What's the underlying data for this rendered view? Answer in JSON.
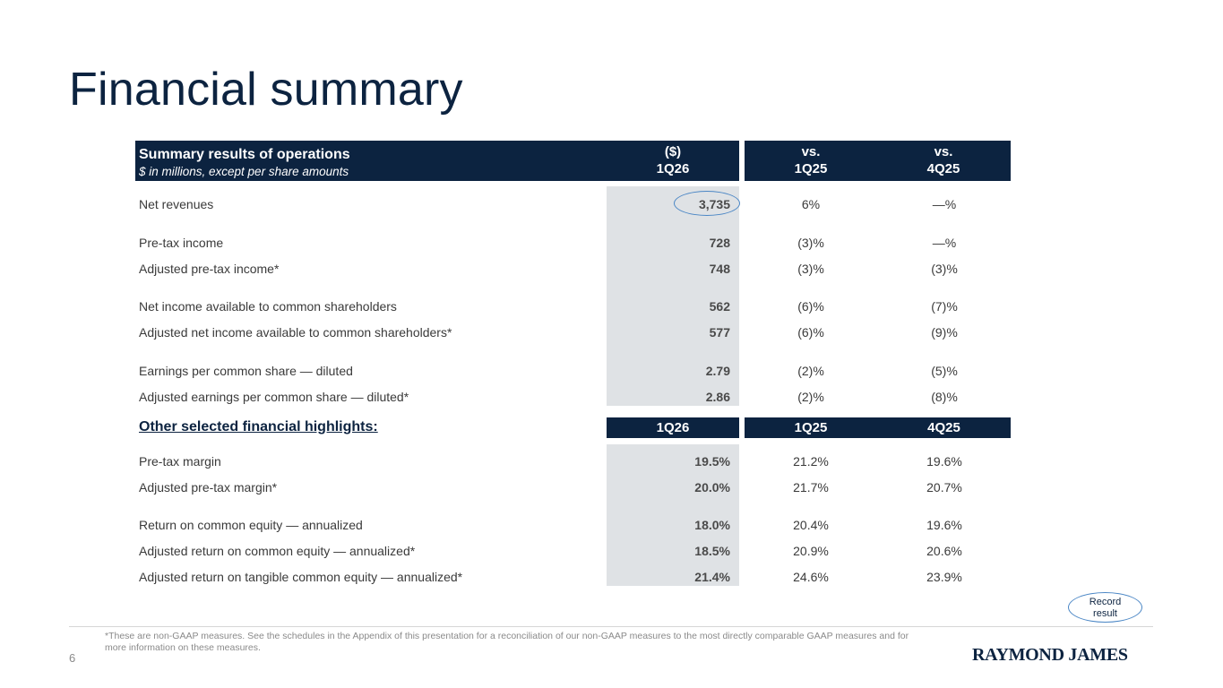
{
  "title": "Financial summary",
  "header": {
    "title": "Summary results of operations",
    "subtitle": "$ in millions, except per share amounts",
    "col1_line1": "($)",
    "col1_line2": "1Q26",
    "col2_line1": "vs.",
    "col2_line2": "1Q25",
    "col3_line1": "vs.",
    "col3_line2": "4Q25"
  },
  "results": [
    {
      "label": "Net revenues",
      "value": "3,735",
      "vs_prior_year": "6%",
      "vs_prior_quarter": "—%"
    },
    {
      "label": "Pre-tax income",
      "value": "728",
      "vs_prior_year": "(3)%",
      "vs_prior_quarter": "—%"
    },
    {
      "label": "Adjusted pre-tax income*",
      "value": "748",
      "vs_prior_year": "(3)%",
      "vs_prior_quarter": "(3)%"
    },
    {
      "label": "Net income available to common shareholders",
      "value": "562",
      "vs_prior_year": "(6)%",
      "vs_prior_quarter": "(7)%"
    },
    {
      "label": "Adjusted net income available to common shareholders*",
      "value": "577",
      "vs_prior_year": "(6)%",
      "vs_prior_quarter": "(9)%"
    },
    {
      "label": "Earnings per common share — diluted",
      "value": "2.79",
      "vs_prior_year": "(2)%",
      "vs_prior_quarter": "(5)%"
    },
    {
      "label": "Adjusted earnings per common share — diluted*",
      "value": "2.86",
      "vs_prior_year": "(2)%",
      "vs_prior_quarter": "(8)%"
    }
  ],
  "highlights": {
    "label": "Other selected financial highlights:",
    "col1": "1Q26",
    "col2": "1Q25",
    "col3": "4Q25",
    "rows": [
      {
        "label": "Pre-tax margin",
        "v1": "19.5%",
        "v2": "21.2%",
        "v3": "19.6%"
      },
      {
        "label": "Adjusted pre-tax margin*",
        "v1": "20.0%",
        "v2": "21.7%",
        "v3": "20.7%"
      },
      {
        "label": "Return on common equity — annualized",
        "v1": "18.0%",
        "v2": "20.4%",
        "v3": "19.6%"
      },
      {
        "label": "Adjusted return on common equity — annualized*",
        "v1": "18.5%",
        "v2": "20.9%",
        "v3": "20.6%"
      },
      {
        "label": "Adjusted return on tangible common equity — annualized*",
        "v1": "21.4%",
        "v2": "24.6%",
        "v3": "23.9%"
      }
    ]
  },
  "callout": {
    "line1": "Record",
    "line2": "result"
  },
  "footnote": "*These are non-GAAP measures. See the schedules in the Appendix of this presentation for a reconciliation of our non-GAAP measures to the most directly comparable GAAP measures and for more information on these measures.",
  "page_number": "6",
  "logo_text": "RAYMOND JAMES",
  "colors": {
    "navy": "#0c2340",
    "shade": "#dfe2e5",
    "accent": "#4a86c5"
  }
}
